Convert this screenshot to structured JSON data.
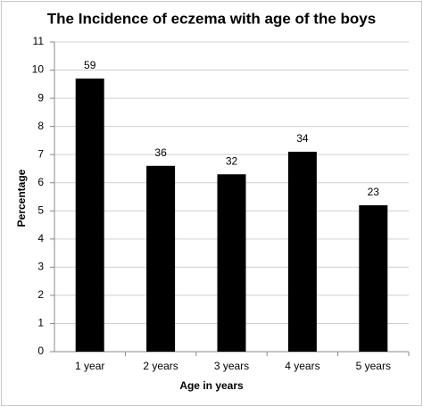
{
  "chart_data": {
    "type": "bar",
    "title": "The Incidence of eczema with age of the boys",
    "x_label": "Age in years",
    "y_label": "Percentage",
    "categories": [
      "1 year",
      "2 years",
      "3 years",
      "4 years",
      "5 years"
    ],
    "values": [
      9.7,
      6.6,
      6.3,
      7.1,
      5.2
    ],
    "data_labels": [
      59,
      36,
      32,
      34,
      23
    ],
    "color": "#000000",
    "ylim": [
      0,
      11
    ],
    "yticks": [
      0,
      1,
      2,
      3,
      4,
      5,
      6,
      7,
      8,
      9,
      10,
      11
    ],
    "grid": true
  }
}
